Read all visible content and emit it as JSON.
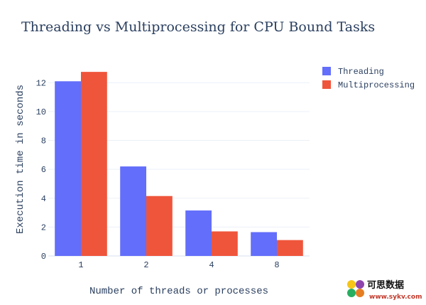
{
  "chart_data": {
    "type": "bar",
    "title": "Threading vs Multiprocessing for CPU Bound Tasks",
    "xlabel": "Number of threads or processes",
    "ylabel": "Execution time in seconds",
    "categories": [
      "1",
      "2",
      "4",
      "8"
    ],
    "series": [
      {
        "name": "Threading",
        "values": [
          12.1,
          6.2,
          3.15,
          1.65
        ],
        "color": "#636efa"
      },
      {
        "name": "Multiprocessing",
        "values": [
          12.75,
          4.15,
          1.7,
          1.1
        ],
        "color": "#ef553b"
      }
    ],
    "ylim": [
      0,
      13.1
    ],
    "yticks": [
      0,
      2,
      4,
      6,
      8,
      10,
      12
    ],
    "grid": true,
    "legend_position": "top-right"
  },
  "watermark": {
    "text": "可思数据",
    "url": "www.sykv.com"
  }
}
